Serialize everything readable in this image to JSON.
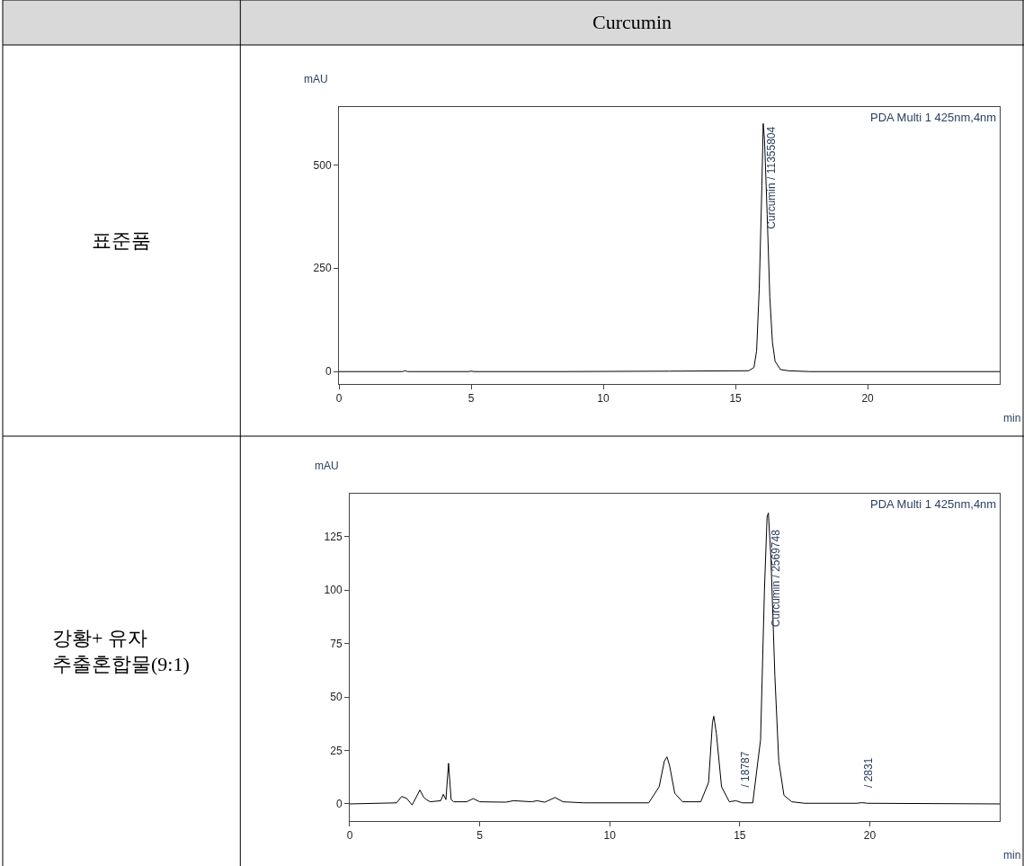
{
  "chart_data": [
    {
      "type": "line",
      "title": "Curcumin",
      "xlabel": "min",
      "ylabel": "mAU",
      "x": [
        0,
        2.4,
        2.5,
        2.6,
        4.9,
        5.0,
        5.1,
        8.6,
        12.5,
        15.5,
        15.7,
        15.8,
        15.9,
        16.0,
        16.05,
        16.1,
        16.2,
        16.3,
        16.4,
        16.5,
        16.7,
        17.0,
        17.8,
        25
      ],
      "series": [
        {
          "color": "#000000",
          "values": [
            0,
            0,
            2,
            0,
            0,
            1,
            0,
            0,
            1,
            2,
            10,
            50,
            200,
            450,
            600,
            560,
            380,
            180,
            70,
            25,
            5,
            2,
            0,
            0
          ]
        }
      ],
      "xlim": [
        0,
        25
      ],
      "ylim": [
        -30,
        640
      ],
      "xticks": [
        0,
        5,
        10,
        15,
        20
      ],
      "yticks": [
        0,
        250,
        500
      ],
      "annotations": [
        "표준품",
        "PDA Multi 1 425nm,4nm",
        {
          "text": "Curcumin / 11355804",
          "x": 16.35,
          "y": 340
        }
      ],
      "line_style": "solid",
      "grid": false,
      "legend": false
    },
    {
      "type": "line",
      "xlabel": "min",
      "ylabel": "mAU",
      "x": [
        0,
        1.8,
        2.0,
        2.2,
        2.4,
        2.55,
        2.7,
        2.85,
        2.95,
        3.1,
        3.5,
        3.6,
        3.7,
        3.8,
        3.9,
        4.0,
        4.5,
        4.75,
        5.0,
        6.0,
        6.3,
        7.0,
        7.2,
        7.5,
        7.9,
        8.2,
        9.0,
        11.5,
        11.9,
        12.1,
        12.2,
        12.3,
        12.5,
        12.8,
        13.5,
        13.8,
        13.95,
        14.0,
        14.1,
        14.3,
        14.6,
        14.85,
        15.1,
        15.5,
        15.8,
        15.95,
        16.05,
        16.1,
        16.2,
        16.35,
        16.5,
        16.7,
        17.0,
        17.5,
        19.5,
        19.7,
        19.9,
        25
      ],
      "series": [
        {
          "color": "#000000",
          "values": [
            0,
            0.5,
            3.5,
            2.5,
            -0.5,
            3,
            6.5,
            3,
            2,
            1,
            1.5,
            4.5,
            2,
            19,
            2,
            1,
            1,
            2.5,
            1,
            0.8,
            1.5,
            1,
            1.5,
            0.8,
            3,
            1,
            0.5,
            0.5,
            8,
            20,
            22,
            18,
            5,
            1,
            1,
            10,
            38,
            41,
            33,
            8,
            1,
            1.5,
            0.5,
            0.5,
            30,
            100,
            134,
            136,
            115,
            60,
            20,
            4,
            1,
            0.3,
            0.3,
            0.6,
            0.3,
            0
          ]
        }
      ],
      "xlim": [
        0,
        25
      ],
      "ylim": [
        -8,
        145
      ],
      "xticks": [
        0,
        5,
        10,
        15,
        20
      ],
      "yticks": [
        0,
        25,
        50,
        75,
        100,
        125
      ],
      "annotations": [
        "강황+ 유자\n추출혼합물(9:1)",
        "PDA Multi 1 425nm,4nm",
        {
          "text": "Curcumin / 2569748",
          "x": 16.4,
          "y": 82
        },
        "/ 18787",
        "/ 2831"
      ],
      "line_style": "solid",
      "grid": false,
      "legend": false
    }
  ]
}
